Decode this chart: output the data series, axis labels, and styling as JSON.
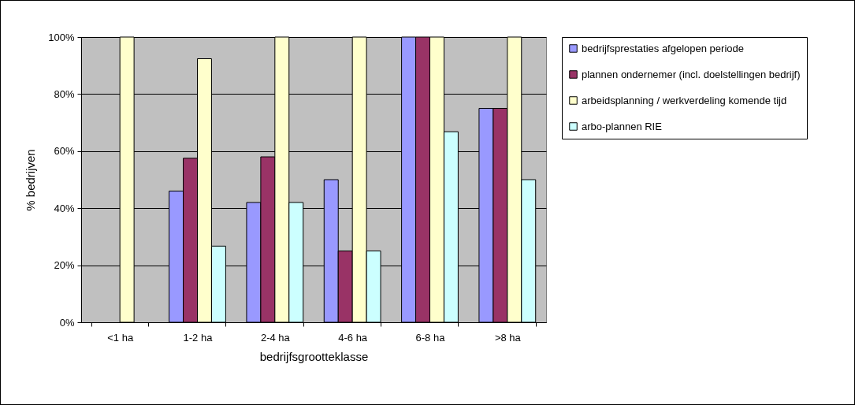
{
  "chart_data": {
    "type": "bar",
    "xlabel": "bedrijfsgrootteklasse",
    "ylabel": "% bedrijven",
    "categories": [
      "<1 ha",
      "1-2 ha",
      "2-4 ha",
      "4-6 ha",
      "6-8 ha",
      ">8 ha"
    ],
    "series": [
      {
        "name": "bedrijfsprestaties afgelopen periode",
        "color": "#9999ff",
        "values": [
          null,
          46,
          42,
          50,
          100,
          75
        ]
      },
      {
        "name": "plannen ondernemer (incl. doelstellingen bedrijf)",
        "color": "#993366",
        "values": [
          null,
          57.5,
          58,
          25,
          100,
          75
        ]
      },
      {
        "name": "arbeidsplanning / werkverdeling komende tijd",
        "color": "#ffffcc",
        "values": [
          100,
          92.4,
          100,
          100,
          100,
          100
        ]
      },
      {
        "name": "arbo-plannen RIE",
        "color": "#ccffff",
        "values": [
          null,
          26.7,
          42,
          25,
          66.8,
          50
        ]
      }
    ],
    "ylim": [
      0,
      100
    ],
    "yticks": [
      {
        "value": 0,
        "label": "0%"
      },
      {
        "value": 20,
        "label": "20%"
      },
      {
        "value": 40,
        "label": "40%"
      },
      {
        "value": 60,
        "label": "60%"
      },
      {
        "value": 80,
        "label": "80%"
      },
      {
        "value": 100,
        "label": "100%"
      }
    ],
    "grid": "y",
    "legend": "right"
  }
}
